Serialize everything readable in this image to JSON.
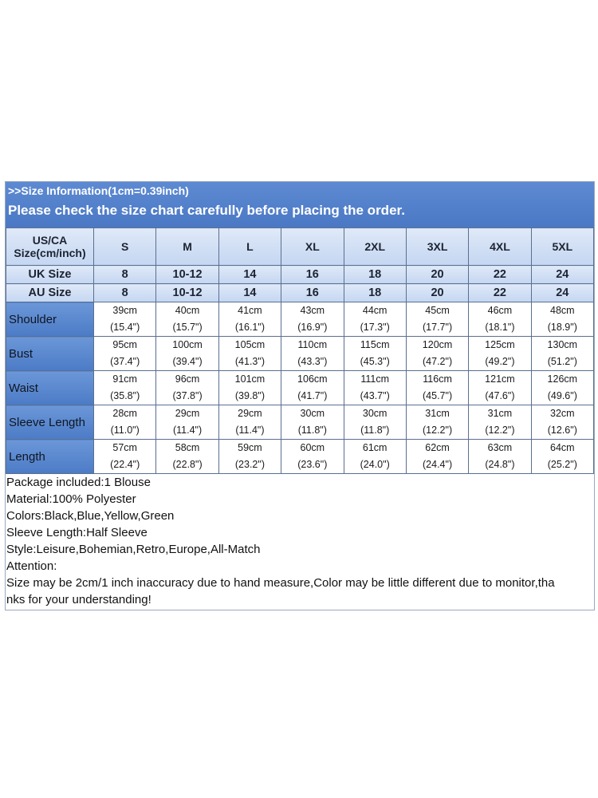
{
  "header": {
    "info": ">>Size Information(1cm=0.39inch)",
    "check": "Please check the size chart carefully before placing the order."
  },
  "table": {
    "us_label_line1": "US/CA",
    "us_label_line2": "Size(cm/inch)",
    "sizes": [
      "S",
      "M",
      "L",
      "XL",
      "2XL",
      "3XL",
      "4XL",
      "5XL"
    ],
    "uk_label": "UK Size",
    "uk": [
      "8",
      "10-12",
      "14",
      "16",
      "18",
      "20",
      "22",
      "24"
    ],
    "au_label": "AU Size",
    "au": [
      "8",
      "10-12",
      "14",
      "16",
      "18",
      "20",
      "22",
      "24"
    ],
    "rows": [
      {
        "label": "Shoulder",
        "cm": [
          "39cm",
          "40cm",
          "41cm",
          "43cm",
          "44cm",
          "45cm",
          "46cm",
          "48cm"
        ],
        "inch": [
          "(15.4\")",
          "(15.7\")",
          "(16.1\")",
          "(16.9\")",
          "(17.3\")",
          "(17.7\")",
          "(18.1\")",
          "(18.9\")"
        ]
      },
      {
        "label": "Bust",
        "cm": [
          "95cm",
          "100cm",
          "105cm",
          "110cm",
          "115cm",
          "120cm",
          "125cm",
          "130cm"
        ],
        "inch": [
          "(37.4\")",
          "(39.4\")",
          "(41.3\")",
          "(43.3\")",
          "(45.3\")",
          "(47.2\")",
          "(49.2\")",
          "(51.2\")"
        ]
      },
      {
        "label": "Waist",
        "cm": [
          "91cm",
          "96cm",
          "101cm",
          "106cm",
          "111cm",
          "116cm",
          "121cm",
          "126cm"
        ],
        "inch": [
          "(35.8\")",
          "(37.8\")",
          "(39.8\")",
          "(41.7\")",
          "(43.7\")",
          "(45.7\")",
          "(47.6\")",
          "(49.6\")"
        ]
      },
      {
        "label": "Sleeve Length",
        "cm": [
          "28cm",
          "29cm",
          "29cm",
          "30cm",
          "30cm",
          "31cm",
          "31cm",
          "32cm"
        ],
        "inch": [
          "(11.0\")",
          "(11.4\")",
          "(11.4\")",
          "(11.8\")",
          "(11.8\")",
          "(12.2\")",
          "(12.2\")",
          "(12.6\")"
        ]
      },
      {
        "label": "Length",
        "cm": [
          "57cm",
          "58cm",
          "59cm",
          "60cm",
          "61cm",
          "62cm",
          "63cm",
          "64cm"
        ],
        "inch": [
          "(22.4\")",
          "(22.8\")",
          "(23.2\")",
          "(23.6\")",
          "(24.0\")",
          "(24.4\")",
          "(24.8\")",
          "(25.2\")"
        ]
      }
    ]
  },
  "notes": [
    "Package included:1 Blouse",
    "Material:100% Polyester",
    "Colors:Black,Blue,Yellow,Green",
    "Sleeve Length:Half Sleeve",
    "Style:Leisure,Bohemian,Retro,Europe,All-Match",
    "Attention:",
    "Size may be 2cm/1 inch inaccuracy due to hand measure,Color may be little different due to monitor,tha",
    "nks for your understanding!"
  ],
  "colors": {
    "banner": "#4b78c4",
    "label_cell": "#5d8ad2",
    "header_cell": "#d3e1f5"
  }
}
